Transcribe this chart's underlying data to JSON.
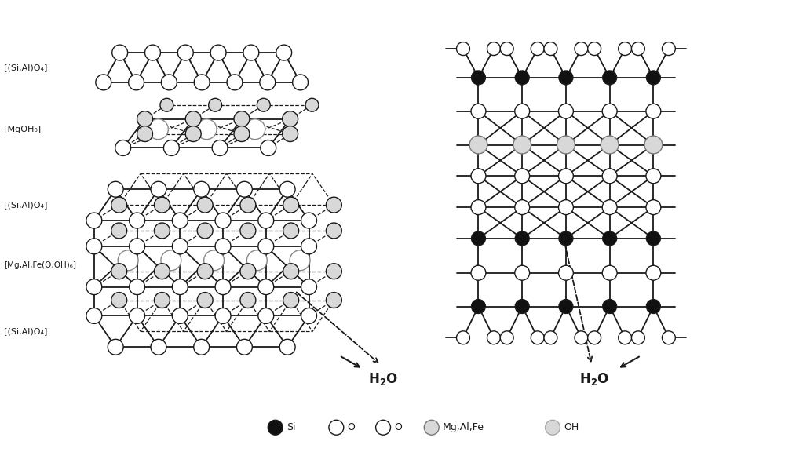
{
  "bg_color": "#ffffff",
  "lc": "#1a1a1a",
  "node_white": "#ffffff",
  "node_black": "#111111",
  "node_gray": "#b0b0b0",
  "node_lightgray": "#d8d8d8",
  "lw_main": 1.3,
  "lw_dash": 0.9,
  "nr": 0.1,
  "nr_inner": 0.13,
  "label_SiAl_top": "[(Si,Al)O₄]",
  "label_MgOH": "[MgOH₆]",
  "label_SiAl_mid": "[(Si,Al)O₄]",
  "label_MgAlFe": "[Mg,Al,Fe(O,OH)₆]",
  "label_SiAl_bot": "[(Si,Al)O₄]"
}
